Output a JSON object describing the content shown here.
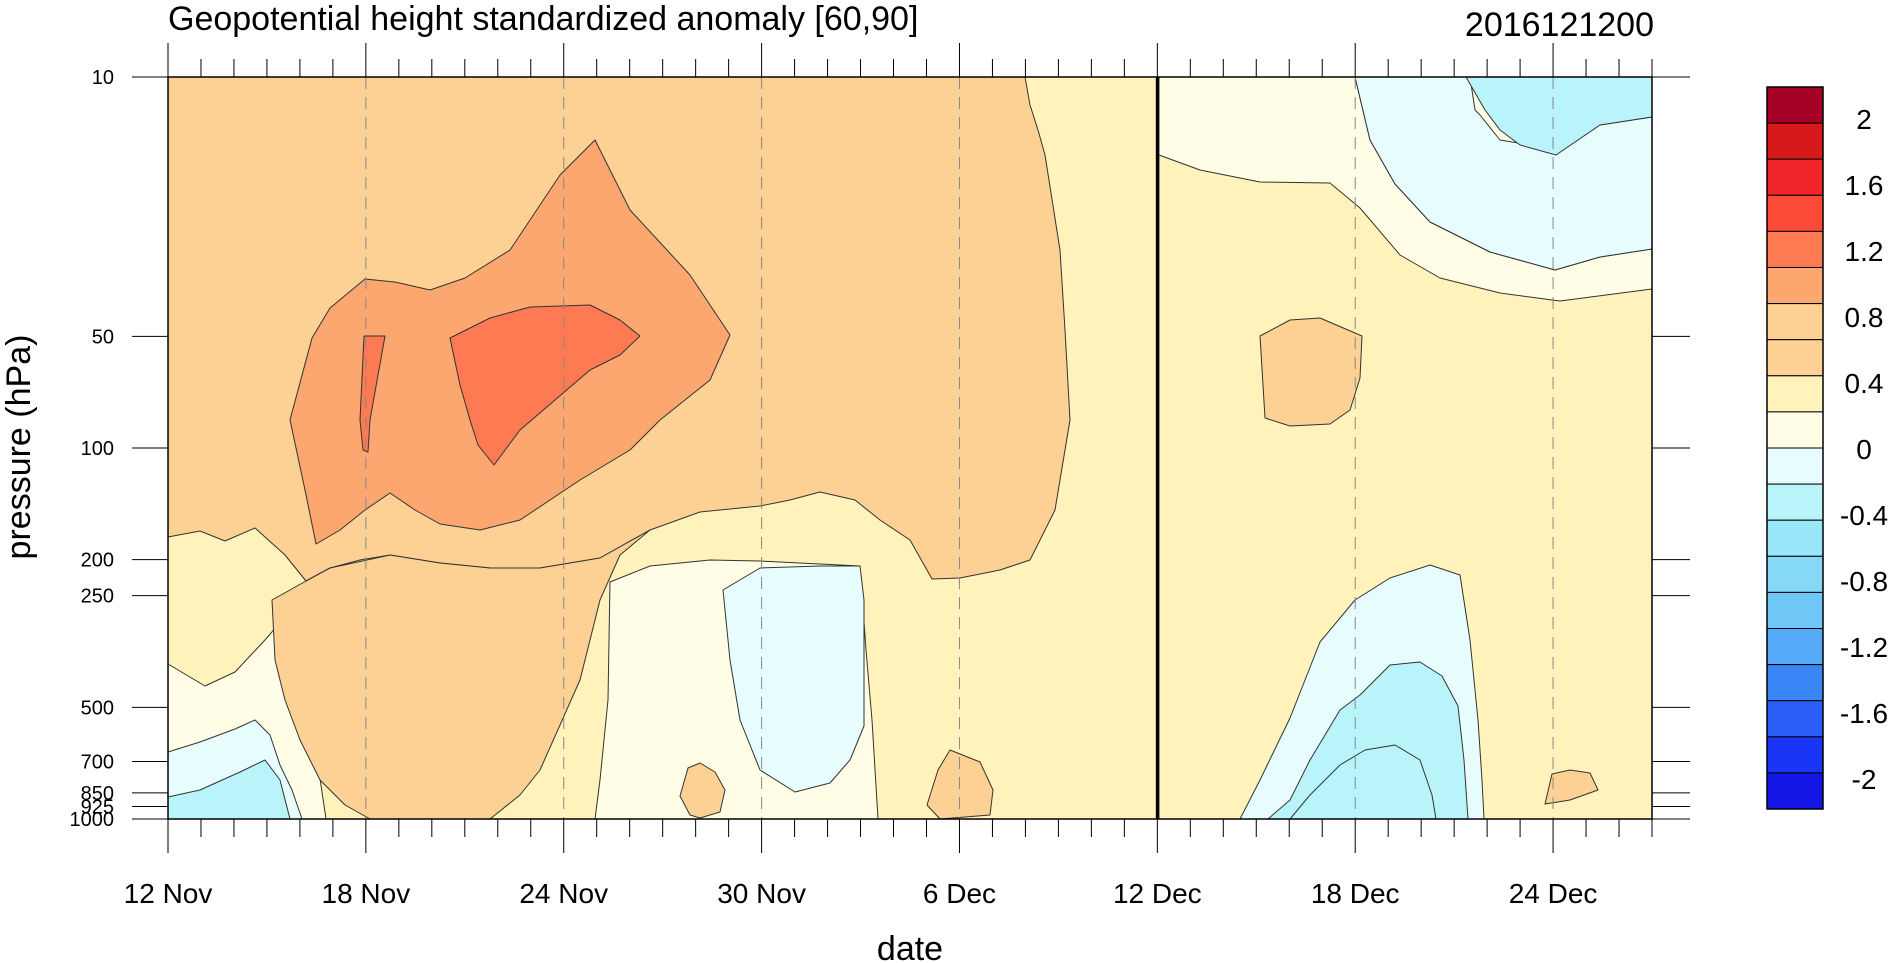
{
  "chart_data": {
    "type": "heatmap",
    "title": "Geopotential height standardized anomaly [60,90]",
    "stamp": "2016121200",
    "xlabel": "date",
    "ylabel": "pressure (hPa)",
    "x_ticks": [
      "12 Nov",
      "18 Nov",
      "24 Nov",
      "30 Nov",
      "6 Dec",
      "12 Dec",
      "18 Dec",
      "24 Dec"
    ],
    "x_range": [
      "2016-11-12",
      "2016-12-27"
    ],
    "analysis_date": "2016-12-12",
    "y_ticks": [
      "10",
      "50",
      "100",
      "200",
      "250",
      "500",
      "700",
      "850",
      "925",
      "1000"
    ],
    "y_scale": "log-pressure",
    "y_range": [
      1000,
      10
    ],
    "colorbar": {
      "labels": [
        "2",
        "1.6",
        "1.2",
        "0.8",
        "0.4",
        "0",
        "-0.4",
        "-0.8",
        "-1.2",
        "-1.6",
        "-2"
      ],
      "levels": [
        -2.2,
        -2.0,
        -1.8,
        -1.6,
        -1.4,
        -1.2,
        -1.0,
        -0.8,
        -0.6,
        -0.4,
        -0.2,
        0,
        0.2,
        0.4,
        0.6,
        0.8,
        1.0,
        1.2,
        1.4,
        1.6,
        1.8,
        2.0,
        2.2
      ],
      "colors": [
        "#a50026",
        "#d7191c",
        "#f0262a",
        "#fb4a36",
        "#fe7a52",
        "#fca770",
        "#fdd093",
        "#fdd093",
        "#fff2ba",
        "#fffde6",
        "#e6fcfd",
        "#b8f4fa",
        "#98e6f8",
        "#86d8f7",
        "#6ec7f6",
        "#55aaf7",
        "#3986f7",
        "#2a5ef6",
        "#1a35f5",
        "#1416e6"
      ]
    },
    "region_colors": {
      "neg_0_4": "#b8f4fa",
      "neg_0_2": "#e6fcfd",
      "zero_pos": "#fffde6",
      "pos_0_2": "#fff2ba",
      "pos_0_4": "#fdd093",
      "pos_0_8": "#fca770",
      "pos_1_2": "#fe7a52"
    }
  }
}
